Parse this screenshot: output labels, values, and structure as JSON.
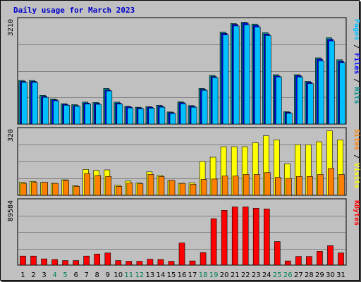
{
  "chart_data": {
    "title": "Daily usage for March 2023",
    "type": "bar",
    "days": [
      "1",
      "2",
      "3",
      "4",
      "5",
      "6",
      "7",
      "8",
      "9",
      "10",
      "11",
      "12",
      "13",
      "14",
      "15",
      "16",
      "17",
      "18",
      "19",
      "20",
      "21",
      "22",
      "23",
      "24",
      "25",
      "26",
      "27",
      "28",
      "29",
      "30",
      "31"
    ],
    "weekend_days": [
      "4",
      "5",
      "11",
      "12",
      "18",
      "19",
      "25",
      "26"
    ],
    "panels": [
      {
        "id": "top",
        "ymax": 3210,
        "ymax_label": "3210",
        "side_labels": [
          "Pages",
          "Files",
          "Hits"
        ],
        "series": [
          {
            "name": "Hits",
            "color": "#009090",
            "values": [
              1370,
              1370,
              900,
              790,
              640,
              610,
              690,
              680,
              1120,
              690,
              560,
              530,
              550,
              590,
              380,
              700,
              580,
              1120,
              1530,
              2890,
              3160,
              3200,
              3140,
              2870,
              1550,
              390,
              1550,
              1340,
              2080,
              2710,
              2020
            ]
          },
          {
            "name": "Files",
            "color": "#0000ff",
            "values": [
              1340,
              1340,
              870,
              760,
              620,
              580,
              660,
              650,
              1070,
              660,
              540,
              510,
              530,
              560,
              360,
              670,
              560,
              1090,
              1490,
              2850,
              3130,
              3170,
              3100,
              2830,
              1510,
              370,
              1520,
              1310,
              2040,
              2660,
              1970
            ]
          },
          {
            "name": "Pages",
            "color": "#00c0ff",
            "values": [
              1310,
              1310,
              840,
              730,
              590,
              560,
              630,
              620,
              1040,
              630,
              510,
              480,
              500,
              530,
              330,
              640,
              530,
              1060,
              1460,
              2800,
              3080,
              3120,
              3050,
              2780,
              1480,
              340,
              1480,
              1270,
              1990,
              2610,
              1930
            ]
          }
        ]
      },
      {
        "id": "middle",
        "ymax": 320,
        "ymax_label": "320",
        "side_labels": [
          "Sites",
          "Visits"
        ],
        "series": [
          {
            "name": "Visits",
            "color": "#ffff00",
            "values": [
              65,
              70,
              65,
              60,
              78,
              48,
              130,
              125,
              128,
              50,
              72,
              62,
              118,
              100,
              75,
              60,
              62,
              170,
              192,
              245,
              245,
              245,
              265,
              300,
              280,
              158,
              255,
              255,
              270,
              325,
              280
            ]
          },
          {
            "name": "Sites",
            "color": "#ff8000",
            "values": [
              60,
              65,
              65,
              60,
              75,
              45,
              110,
              100,
              95,
              45,
              62,
              58,
              105,
              95,
              75,
              60,
              55,
              80,
              82,
              97,
              97,
              105,
              105,
              115,
              90,
              85,
              95,
              95,
              105,
              135,
              105
            ]
          }
        ]
      },
      {
        "id": "bottom",
        "ymax": 89584,
        "ymax_label": "89584",
        "side_labels": [
          "KBytes"
        ],
        "series": [
          {
            "name": "KBytes",
            "color": "#ff0000",
            "values": [
              13000,
              13000,
              9000,
              8000,
              6500,
              6500,
              13000,
              16000,
              17500,
              6500,
              5500,
              5500,
              8500,
              8000,
              5500,
              32000,
              6000,
              18000,
              67000,
              79000,
              84000,
              84000,
              82000,
              81000,
              34000,
              6000,
              12500,
              12500,
              20000,
              28000,
              17500
            ]
          }
        ]
      }
    ]
  }
}
